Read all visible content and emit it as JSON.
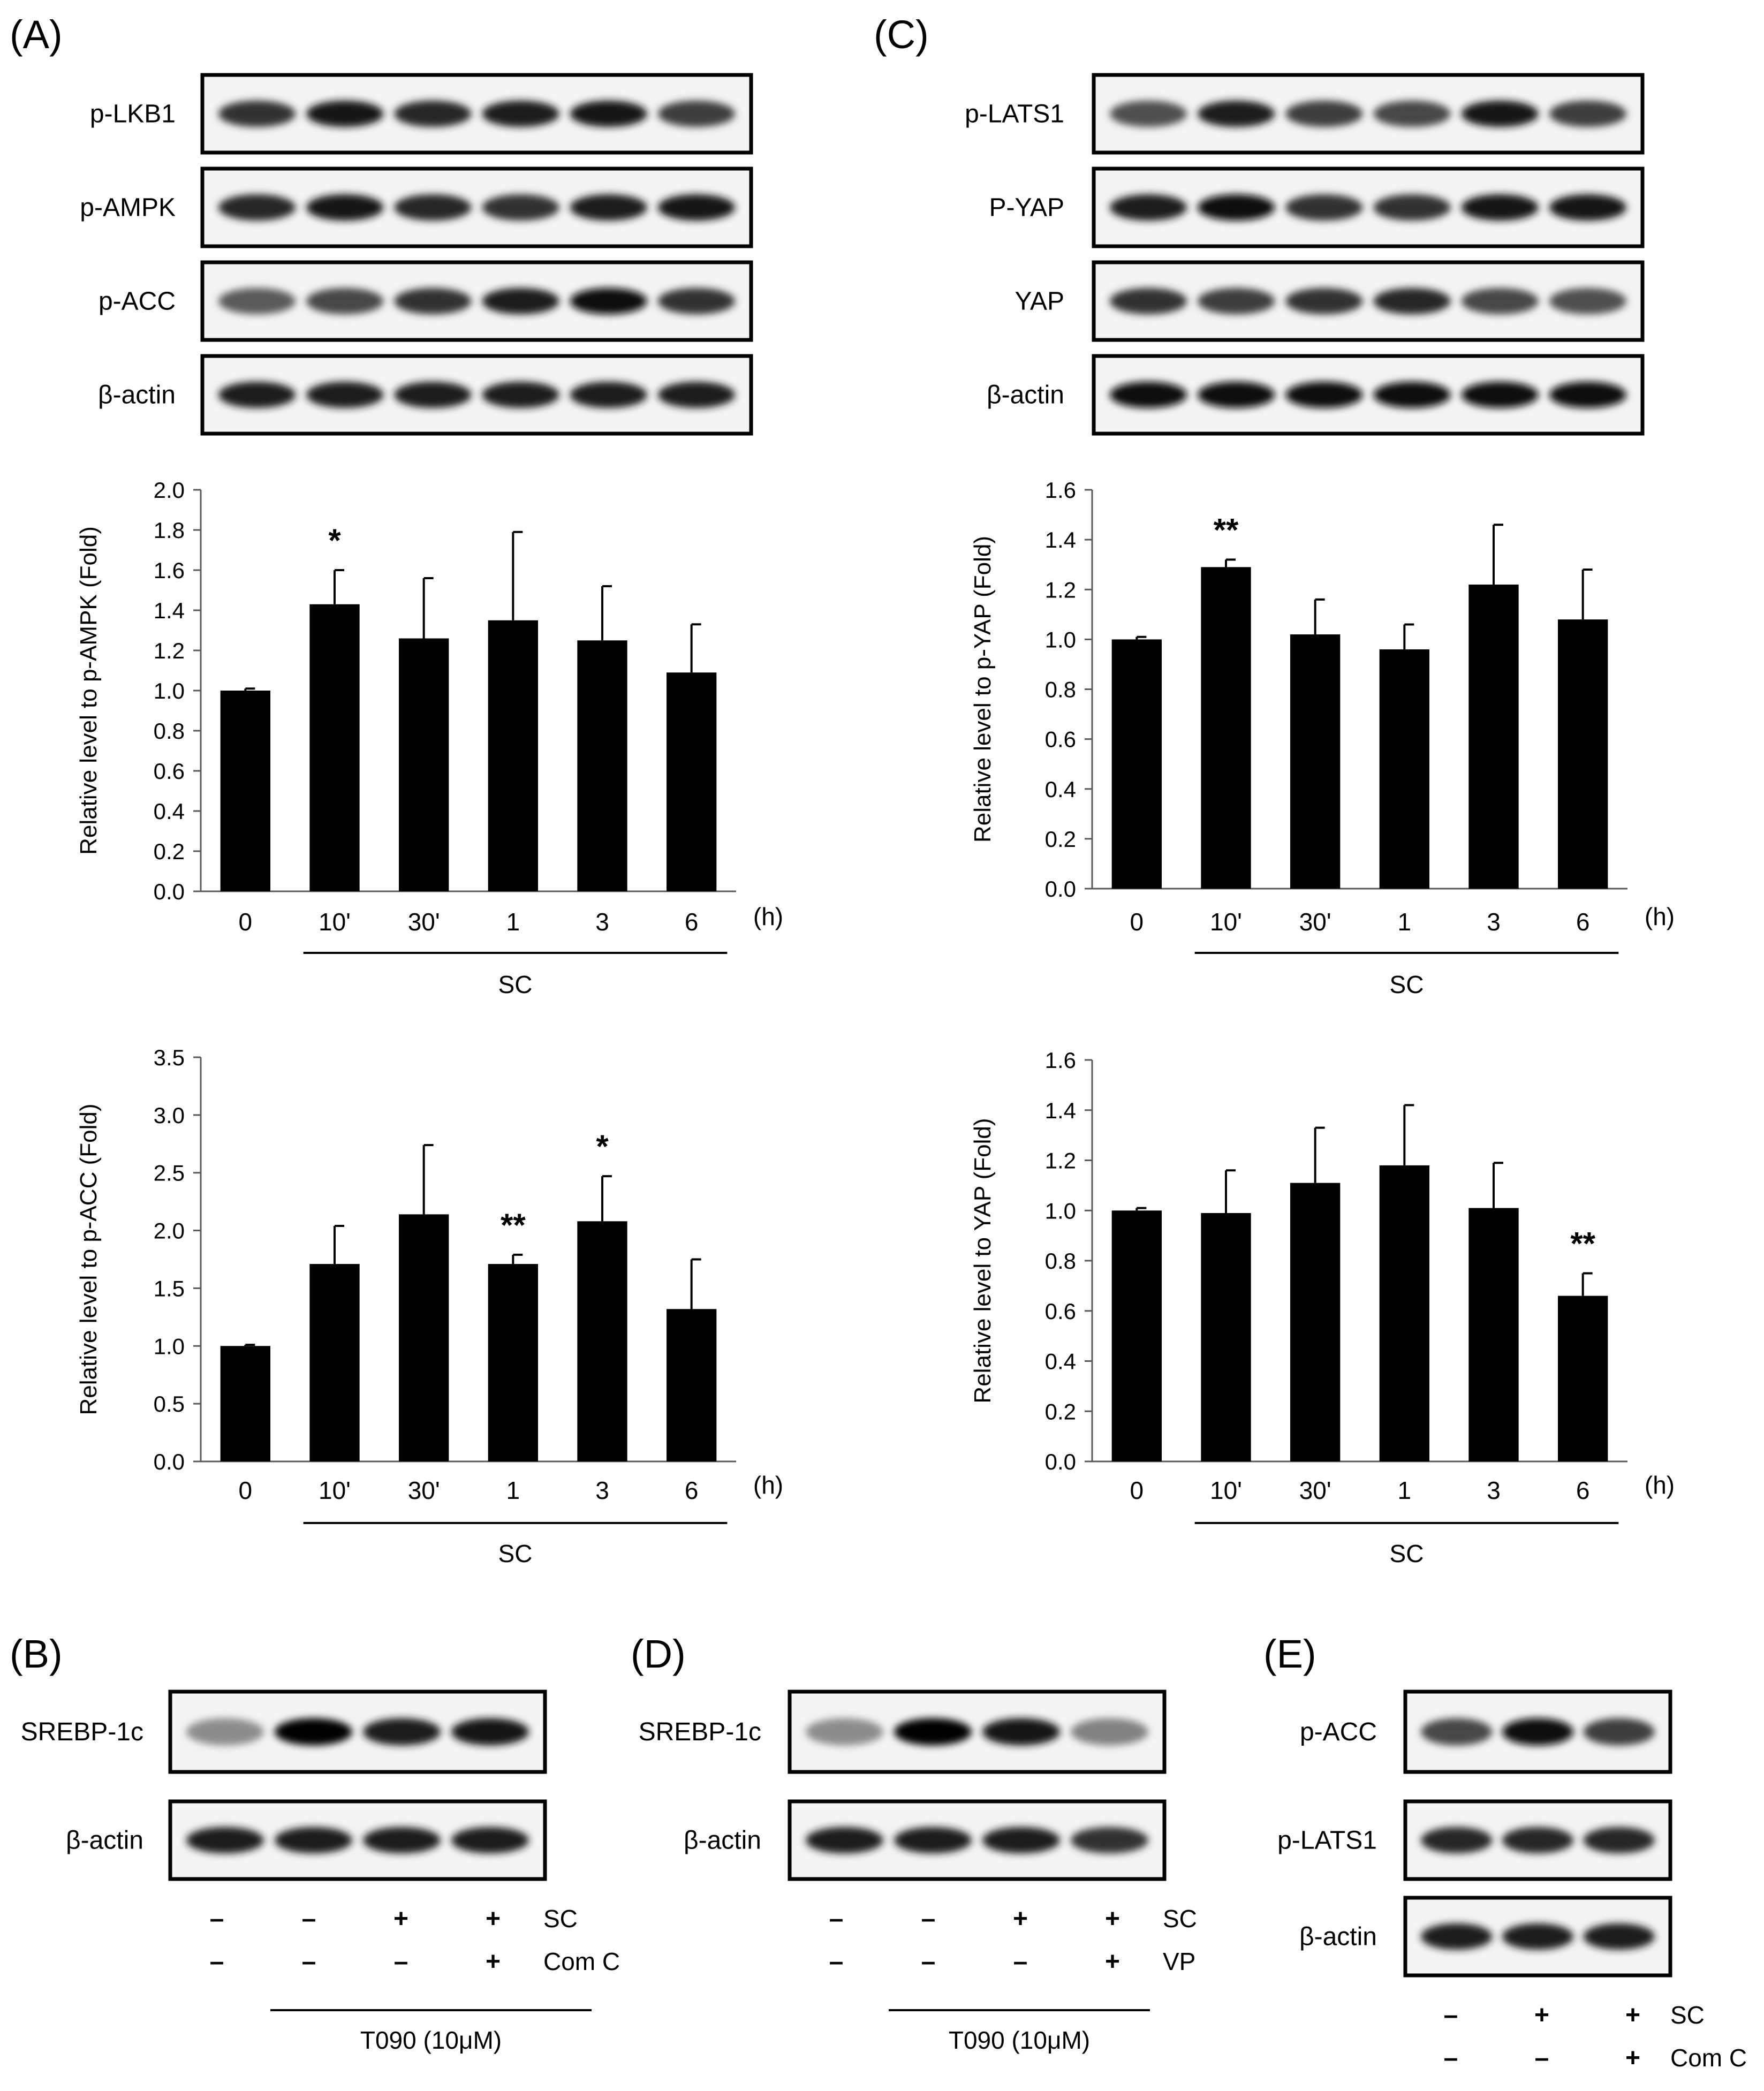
{
  "panels": {
    "A": {
      "label": "(A)",
      "blot_labels": [
        "p-LKB1",
        "p-AMPK",
        "p-ACC",
        "β-actin"
      ],
      "blot_intensity": [
        [
          0.75,
          0.9,
          0.8,
          0.85,
          0.9,
          0.7
        ],
        [
          0.8,
          0.9,
          0.8,
          0.75,
          0.85,
          0.88
        ],
        [
          0.55,
          0.65,
          0.75,
          0.85,
          0.95,
          0.75
        ],
        [
          0.85,
          0.85,
          0.85,
          0.85,
          0.85,
          0.85
        ]
      ]
    },
    "B": {
      "label": "(B)",
      "blot_labels": [
        "SREBP-1c",
        "β-actin"
      ],
      "blot_intensity": [
        [
          0.3,
          1.0,
          0.85,
          0.9
        ],
        [
          0.85,
          0.85,
          0.85,
          0.85
        ]
      ],
      "treatment_rows": [
        {
          "signs": [
            "–",
            "–",
            "+",
            "+"
          ],
          "name": "SC"
        },
        {
          "signs": [
            "–",
            "–",
            "–",
            "+"
          ],
          "name": "Com C"
        }
      ],
      "bracket_label": "T090 (10μM)"
    },
    "C": {
      "label": "(C)",
      "blot_labels": [
        "p-LATS1",
        "P-YAP",
        "YAP",
        "β-actin"
      ],
      "blot_intensity": [
        [
          0.6,
          0.85,
          0.7,
          0.65,
          0.9,
          0.7
        ],
        [
          0.85,
          0.95,
          0.75,
          0.75,
          0.9,
          0.9
        ],
        [
          0.75,
          0.7,
          0.75,
          0.8,
          0.65,
          0.6
        ],
        [
          0.95,
          0.95,
          0.95,
          0.95,
          0.95,
          0.95
        ]
      ]
    },
    "D": {
      "label": "(D)",
      "blot_labels": [
        "SREBP-1c",
        "β-actin"
      ],
      "blot_intensity": [
        [
          0.3,
          1.0,
          0.9,
          0.35
        ],
        [
          0.85,
          0.85,
          0.85,
          0.75
        ]
      ],
      "treatment_rows": [
        {
          "signs": [
            "–",
            "–",
            "+",
            "+"
          ],
          "name": "SC"
        },
        {
          "signs": [
            "–",
            "–",
            "–",
            "+"
          ],
          "name": "VP"
        }
      ],
      "bracket_label": "T090 (10μM)"
    },
    "E": {
      "label": "(E)",
      "blot_labels": [
        "p-ACC",
        "p-LATS1",
        "β-actin"
      ],
      "blot_intensity": [
        [
          0.65,
          0.95,
          0.7
        ],
        [
          0.8,
          0.8,
          0.8
        ],
        [
          0.85,
          0.85,
          0.85
        ]
      ],
      "treatment_rows": [
        {
          "signs": [
            "–",
            "+",
            "+"
          ],
          "name": "SC"
        },
        {
          "signs": [
            "–",
            "–",
            "+"
          ],
          "name": "Com C"
        }
      ]
    }
  },
  "chart_data": [
    {
      "type": "bar",
      "categories": [
        "0",
        "10'",
        "30'",
        "1",
        "3",
        "6"
      ],
      "values": [
        1.0,
        1.43,
        1.26,
        1.35,
        1.25,
        1.09
      ],
      "errors": [
        0.01,
        0.17,
        0.3,
        0.44,
        0.27,
        0.24
      ],
      "significance": [
        "",
        "*",
        "",
        "",
        "",
        ""
      ],
      "ylabel": "Relative level to p-AMPK (Fold)",
      "xunit": "(h)",
      "group_label": "SC",
      "ylim": [
        0,
        2.0
      ],
      "yticks": [
        "0.0",
        "0.2",
        "0.4",
        "0.6",
        "0.8",
        "1.0",
        "1.2",
        "1.4",
        "1.6",
        "1.8",
        "2.0"
      ],
      "bar_color": "#000000"
    },
    {
      "type": "bar",
      "categories": [
        "0",
        "10'",
        "30'",
        "1",
        "3",
        "6"
      ],
      "values": [
        1.0,
        1.71,
        2.14,
        1.71,
        2.08,
        1.32
      ],
      "errors": [
        0.01,
        0.33,
        0.6,
        0.08,
        0.39,
        0.43
      ],
      "significance": [
        "",
        "",
        "",
        "**",
        "*",
        ""
      ],
      "ylabel": "Relative level to p-ACC (Fold)",
      "xunit": "(h)",
      "group_label": "SC",
      "ylim": [
        0,
        3.5
      ],
      "yticks": [
        "0.0",
        "0.5",
        "1.0",
        "1.5",
        "2.0",
        "2.5",
        "3.0",
        "3.5"
      ],
      "bar_color": "#000000"
    },
    {
      "type": "bar",
      "categories": [
        "0",
        "10'",
        "30'",
        "1",
        "3",
        "6"
      ],
      "values": [
        1.0,
        1.29,
        1.02,
        0.96,
        1.22,
        1.08
      ],
      "errors": [
        0.01,
        0.03,
        0.14,
        0.1,
        0.24,
        0.2
      ],
      "significance": [
        "",
        "**",
        "",
        "",
        "",
        ""
      ],
      "ylabel": "Relative level to p-YAP (Fold)",
      "xunit": "(h)",
      "group_label": "SC",
      "ylim": [
        0,
        1.6
      ],
      "yticks": [
        "0.0",
        "0.2",
        "0.4",
        "0.6",
        "0.8",
        "1.0",
        "1.2",
        "1.4",
        "1.6"
      ],
      "bar_color": "#000000"
    },
    {
      "type": "bar",
      "categories": [
        "0",
        "10'",
        "30'",
        "1",
        "3",
        "6"
      ],
      "values": [
        1.0,
        0.99,
        1.11,
        1.18,
        1.01,
        0.66
      ],
      "errors": [
        0.01,
        0.17,
        0.22,
        0.24,
        0.18,
        0.09
      ],
      "significance": [
        "",
        "",
        "",
        "",
        "",
        "**"
      ],
      "ylabel": "Relative level to YAP (Fold)",
      "xunit": "(h)",
      "group_label": "SC",
      "ylim": [
        0,
        1.6
      ],
      "yticks": [
        "0.0",
        "0.2",
        "0.4",
        "0.6",
        "0.8",
        "1.0",
        "1.2",
        "1.4",
        "1.6"
      ],
      "bar_color": "#000000"
    }
  ]
}
